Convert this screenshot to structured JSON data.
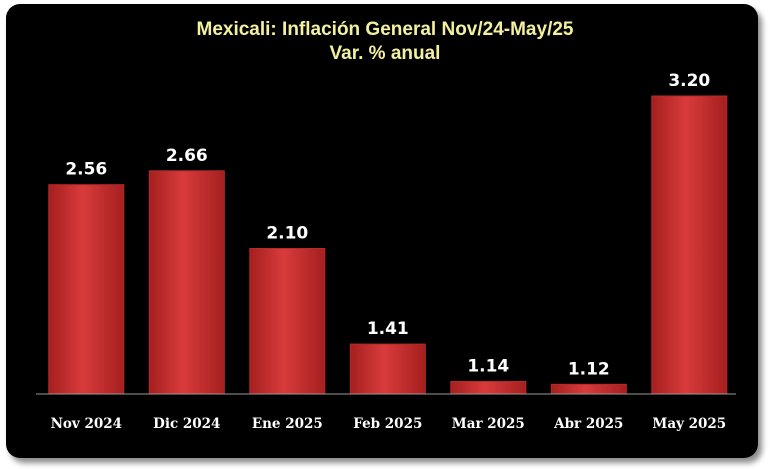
{
  "chart_data": {
    "type": "bar",
    "title": "Mexicali: Inflación General Nov/24-May/25",
    "subtitle": "Var. % anual",
    "categories": [
      "Nov 2024",
      "Dic 2024",
      "Ene 2025",
      "Feb 2025",
      "Mar 2025",
      "Abr 2025",
      "May 2025"
    ],
    "values": [
      2.56,
      2.66,
      2.1,
      1.41,
      1.14,
      1.12,
      3.2
    ],
    "value_labels": [
      "2.56",
      "2.66",
      "2.10",
      "1.41",
      "1.14",
      "1.12",
      "3.20"
    ],
    "xlabel": "",
    "ylabel": "",
    "ylim": [
      1.05,
      3.25
    ],
    "grid": false,
    "legend": "none",
    "colors": {
      "bar": "#d93b3b",
      "bar_dark": "#a51f1f",
      "background": "#000000",
      "title": "#f3f0a0",
      "text": "#ffffff"
    }
  }
}
